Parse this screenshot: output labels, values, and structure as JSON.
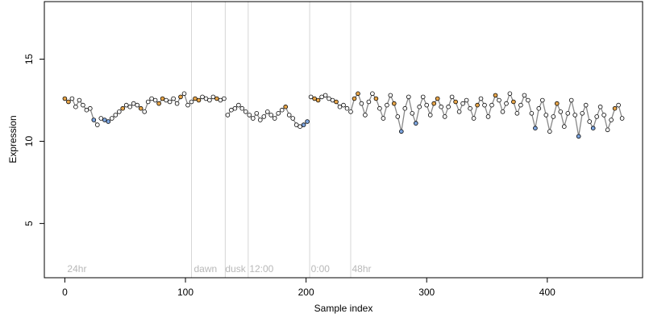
{
  "chart_data": {
    "type": "scatter",
    "xlabel": "Sample index",
    "ylabel": "Expression",
    "xlim": [
      -17,
      479
    ],
    "ylim": [
      1.7,
      18.5
    ],
    "x_ticks": [
      0,
      100,
      200,
      300,
      400
    ],
    "y_ticks": [
      5,
      10,
      15
    ],
    "grid": false,
    "region_lines": [
      105,
      133,
      152,
      203,
      237
    ],
    "region_labels": [
      {
        "text": "24hr",
        "x": 2
      },
      {
        "text": "dawn",
        "x": 107
      },
      {
        "text": "dusk",
        "x": 133
      },
      {
        "text": "12:00",
        "x": 153
      },
      {
        "text": "0:00",
        "x": 204
      },
      {
        "text": "48hr",
        "x": 238
      }
    ],
    "colors": {
      "high": "#e8a64a",
      "mid": "#222222",
      "low": "#7ea6e0",
      "line": "#888888",
      "region_line": "#d6d6d6"
    },
    "series": [
      {
        "x": [
          0,
          3,
          6,
          9,
          12,
          15,
          18,
          21,
          24,
          27
        ],
        "y": [
          12.6,
          12.4,
          12.6,
          12.1,
          12.5,
          12.2,
          11.9,
          12.0,
          11.3,
          11.0
        ]
      },
      {
        "x": [
          30,
          33,
          36,
          39,
          42,
          45,
          48,
          51,
          54,
          57,
          60,
          63,
          66,
          69,
          72,
          75,
          78,
          81,
          84,
          87,
          90,
          93,
          96,
          99,
          102
        ],
        "y": [
          11.4,
          11.3,
          11.2,
          11.4,
          11.6,
          11.8,
          12.0,
          12.2,
          12.1,
          12.3,
          12.2,
          12.0,
          11.8,
          12.4,
          12.6,
          12.5,
          12.3,
          12.6,
          12.5,
          12.4,
          12.6,
          12.3,
          12.7,
          12.9,
          12.2
        ]
      },
      {
        "x": [
          105,
          108,
          111,
          114,
          117,
          120,
          123,
          126,
          129,
          132
        ],
        "y": [
          12.4,
          12.6,
          12.5,
          12.7,
          12.6,
          12.5,
          12.7,
          12.6,
          12.5,
          12.6
        ]
      },
      {
        "x": [
          135,
          138,
          141,
          144,
          147,
          150
        ],
        "y": [
          11.6,
          11.9,
          12.0,
          12.2,
          12.0,
          11.8
        ]
      },
      {
        "x": [
          153,
          156,
          159,
          162,
          165,
          168,
          171,
          174,
          177,
          180,
          183,
          186,
          189,
          192,
          195,
          198,
          201
        ],
        "y": [
          11.6,
          11.4,
          11.7,
          11.3,
          11.5,
          11.8,
          11.6,
          11.4,
          11.7,
          11.9,
          12.1,
          11.6,
          11.4,
          11.0,
          10.9,
          11.0,
          11.2
        ]
      },
      {
        "x": [
          204,
          207,
          210,
          213,
          216,
          219,
          222,
          225,
          228,
          231,
          234
        ],
        "y": [
          12.7,
          12.6,
          12.5,
          12.7,
          12.8,
          12.6,
          12.5,
          12.4,
          12.1,
          12.2,
          12.0
        ]
      },
      {
        "x": [
          237,
          240,
          243,
          246,
          249,
          252,
          255,
          258,
          261,
          264,
          267,
          270,
          273,
          276,
          279,
          282,
          285,
          288,
          291,
          294,
          297,
          300,
          303,
          306,
          309,
          312,
          315,
          318,
          321,
          324,
          327,
          330,
          333,
          336,
          339,
          342,
          345,
          348,
          351,
          354,
          357,
          360,
          363,
          366,
          369,
          372,
          375,
          378,
          381,
          384,
          387,
          390,
          393,
          396,
          399,
          402,
          405,
          408,
          411,
          414,
          417,
          420,
          423,
          426,
          429,
          432,
          435,
          438,
          441,
          444,
          447,
          450,
          453,
          456,
          459,
          462
        ],
        "y": [
          11.8,
          12.6,
          12.9,
          12.3,
          11.6,
          12.4,
          12.9,
          12.6,
          12.0,
          11.4,
          12.2,
          12.8,
          12.3,
          11.5,
          10.6,
          12.0,
          12.7,
          11.7,
          11.1,
          12.1,
          12.7,
          12.2,
          11.6,
          12.3,
          12.6,
          12.1,
          11.5,
          12.1,
          12.7,
          12.4,
          11.8,
          12.3,
          12.5,
          12.0,
          11.4,
          12.2,
          12.6,
          12.2,
          11.5,
          12.2,
          12.8,
          12.5,
          11.8,
          12.3,
          12.9,
          12.4,
          11.7,
          12.2,
          12.8,
          12.5,
          11.7,
          10.8,
          12.0,
          12.5,
          11.6,
          10.6,
          11.5,
          12.3,
          11.8,
          10.9,
          11.7,
          12.5,
          11.6,
          10.3,
          11.7,
          12.2,
          11.2,
          10.8,
          11.5,
          12.1,
          11.6,
          10.7,
          11.3,
          12.0,
          12.2,
          11.4
        ]
      }
    ]
  }
}
